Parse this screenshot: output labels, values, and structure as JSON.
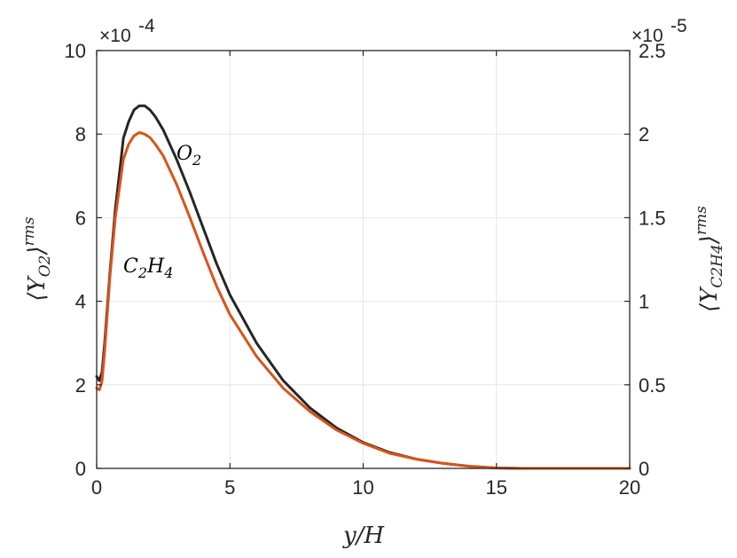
{
  "chart_data": {
    "type": "line",
    "xlabel": "y/H",
    "ylabel_left": "⟨Y_O2⟩^rms",
    "ylabel_right": "⟨Y_C2H4⟩^rms",
    "left_exponent": "×10^-4",
    "right_exponent": "×10^-5",
    "xlim": [
      0,
      20
    ],
    "ylim_left": [
      0,
      10
    ],
    "ylim_right": [
      0,
      2.5
    ],
    "x_ticks": [
      "0",
      "5",
      "10",
      "15",
      "20"
    ],
    "y_left_ticks": [
      "0",
      "2",
      "4",
      "6",
      "8",
      "10"
    ],
    "y_right_ticks": [
      "0",
      "0.5",
      "1",
      "1.5",
      "2",
      "2.5"
    ],
    "grid": true,
    "series": [
      {
        "name": "O2",
        "axis": "left",
        "color": "#262626",
        "x": [
          0,
          0.1,
          0.2,
          0.3,
          0.5,
          0.7,
          0.9,
          1.0,
          1.2,
          1.4,
          1.6,
          1.8,
          2.0,
          2.2,
          2.5,
          3.0,
          3.5,
          4.0,
          4.5,
          5.0,
          6.0,
          7.0,
          8.0,
          9.0,
          10.0,
          11.0,
          12.0,
          13.0,
          14.0,
          15.0,
          16.0,
          17.0,
          18.0,
          19.0,
          20.0
        ],
        "y": [
          2.2,
          2.1,
          2.3,
          3.0,
          4.7,
          6.2,
          7.3,
          7.9,
          8.3,
          8.58,
          8.68,
          8.68,
          8.58,
          8.42,
          8.1,
          7.4,
          6.6,
          5.75,
          4.9,
          4.15,
          3.0,
          2.1,
          1.45,
          0.97,
          0.62,
          0.38,
          0.22,
          0.12,
          0.05,
          0.01,
          0.0,
          0.0,
          0.0,
          0.0,
          0.0
        ]
      },
      {
        "name": "C2H4",
        "axis": "right",
        "color": "#D95319",
        "x": [
          0,
          0.1,
          0.2,
          0.3,
          0.5,
          0.7,
          0.9,
          1.0,
          1.2,
          1.4,
          1.6,
          1.8,
          2.0,
          2.2,
          2.5,
          3.0,
          3.5,
          4.0,
          4.5,
          5.0,
          6.0,
          7.0,
          8.0,
          9.0,
          10.0,
          11.0,
          12.0,
          13.0,
          14.0,
          15.0,
          16.0,
          17.0,
          18.0,
          19.0,
          20.0
        ],
        "y": [
          0.48,
          0.47,
          0.52,
          0.7,
          1.15,
          1.5,
          1.73,
          1.85,
          1.94,
          1.99,
          2.01,
          2.0,
          1.98,
          1.94,
          1.87,
          1.7,
          1.5,
          1.29,
          1.09,
          0.92,
          0.67,
          0.48,
          0.34,
          0.23,
          0.15,
          0.09,
          0.055,
          0.03,
          0.012,
          0.002,
          0.0,
          0.0,
          0.0,
          0.0,
          0.0
        ]
      }
    ],
    "annotations": [
      {
        "base": "O",
        "sub": "2",
        "x": 3.0,
        "y_left": 7.6
      },
      {
        "base": "C",
        "sub1": "2",
        "mid": "H",
        "sub2": "4",
        "x": 1.0,
        "y_left": 5.3
      }
    ]
  }
}
